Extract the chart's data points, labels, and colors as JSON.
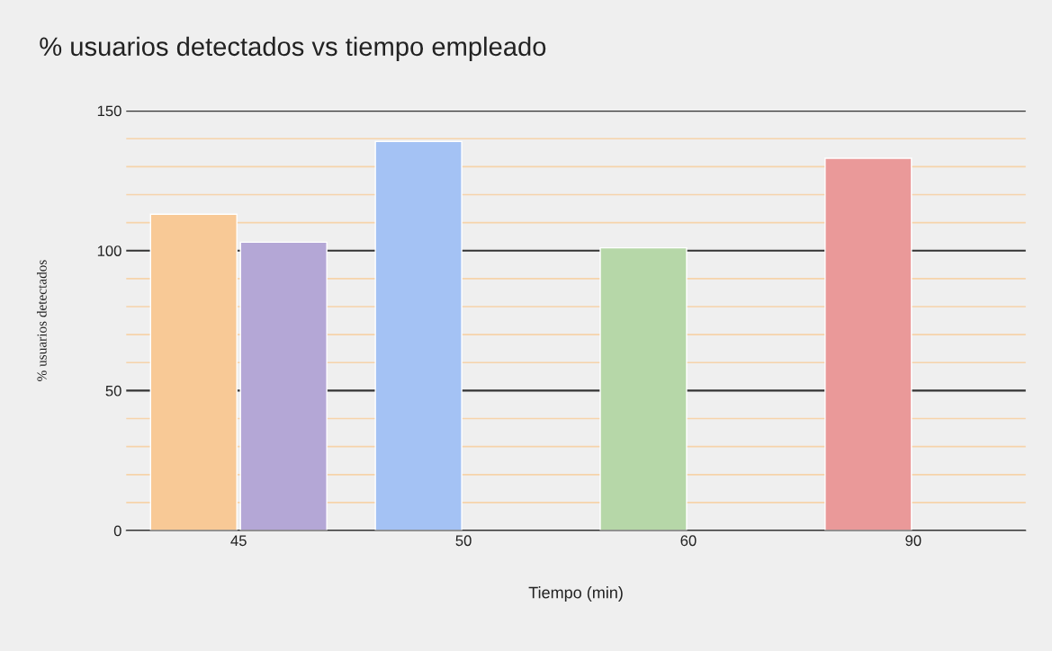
{
  "chart_data": {
    "type": "bar",
    "title": "% usuarios detectados vs tiempo empleado",
    "xlabel": "Tiempo (min)",
    "ylabel": "% usuarios detectados",
    "categories": [
      "45",
      "50",
      "60",
      "90"
    ],
    "series": [
      {
        "colors": [
          "#f8c996",
          "#a4c2f4",
          "#b6d7a8",
          "#ea9999"
        ],
        "values": [
          113,
          139,
          101,
          133
        ]
      },
      {
        "color": "#b4a7d6",
        "values": [
          103,
          null,
          null,
          null
        ]
      }
    ],
    "ylim": [
      0,
      150
    ],
    "yticks": [
      0,
      {
        "value": 10,
        "label": null
      },
      {
        "value": 20,
        "label": null
      },
      {
        "value": 30,
        "label": null
      },
      {
        "value": 40,
        "label": null
      },
      50,
      {
        "value": 60,
        "label": null
      },
      {
        "value": 70,
        "label": null
      },
      {
        "value": 80,
        "label": null
      },
      {
        "value": 90,
        "label": null
      },
      100,
      {
        "value": 110,
        "label": null
      },
      {
        "value": 120,
        "label": null
      },
      {
        "value": 130,
        "label": null
      },
      {
        "value": 140,
        "label": null
      },
      150
    ],
    "grid": "y",
    "legend": false
  }
}
